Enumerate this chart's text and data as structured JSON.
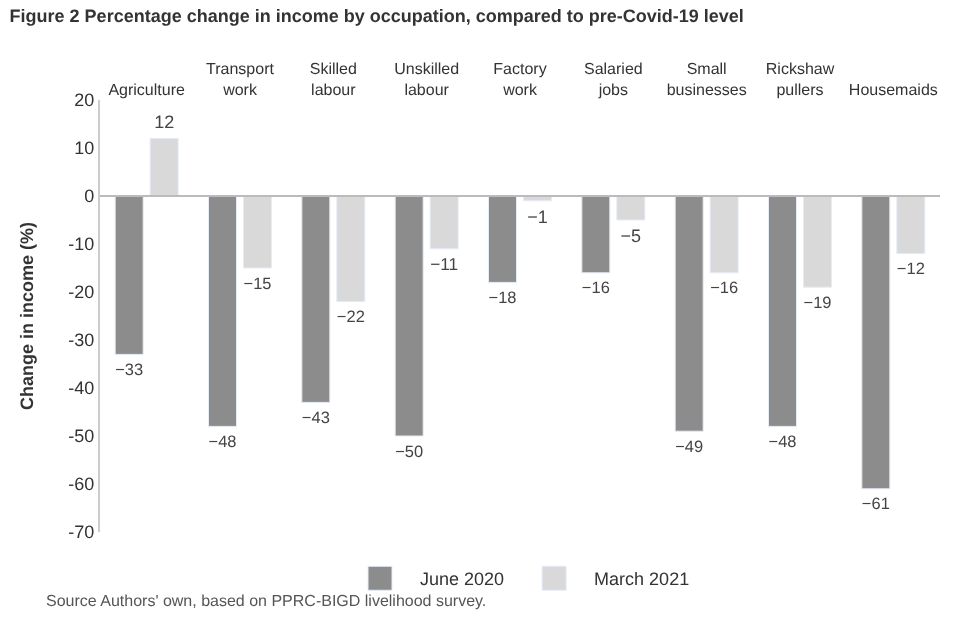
{
  "chart_data": {
    "type": "bar",
    "title": "Figure 2 Percentage change in income by occupation, compared to pre-Covid-19 level",
    "ylabel": "Change in income (%)",
    "categories": [
      "Agriculture",
      "Transport\nwork",
      "Skilled\nlabour",
      "Unskilled\nlabour",
      "Factory\nwork",
      "Salaried\njobs",
      "Small\nbusinesses",
      "Rickshaw\npullers",
      "Housemaids"
    ],
    "series": [
      {
        "name": "June 2020",
        "color": "#8c8c8c",
        "values": [
          -33,
          -48,
          -43,
          -50,
          -18,
          -16,
          -49,
          -48,
          -61
        ]
      },
      {
        "name": "March 2021",
        "color": "#d9d9d9",
        "values": [
          12,
          -15,
          -22,
          -11,
          -1,
          -5,
          -16,
          -19,
          -12
        ]
      }
    ],
    "ylim": [
      -70,
      20
    ],
    "yticks": [
      -70,
      -60,
      -50,
      -40,
      -30,
      -20,
      -10,
      0,
      10,
      20
    ],
    "data_labels": true,
    "legend": "bottom",
    "annotations": [
      "Source Authors' own, based on PPRC-BIGD livelihood survey."
    ]
  }
}
